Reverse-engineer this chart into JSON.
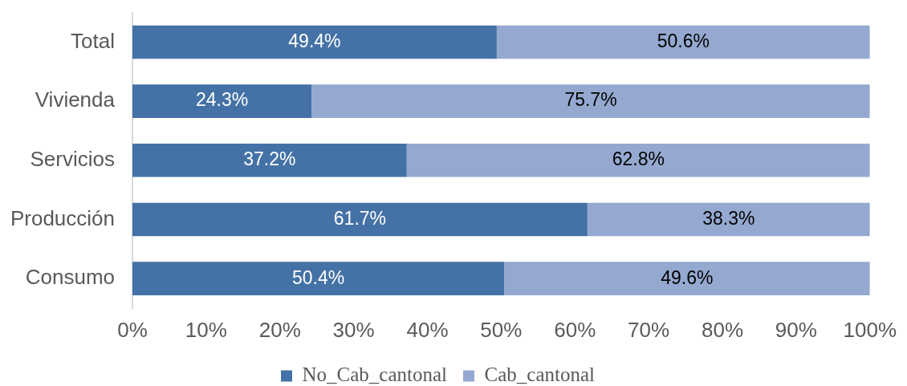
{
  "chart_data": {
    "type": "bar",
    "orientation": "horizontal",
    "stacked": true,
    "categories": [
      "Total",
      "Vivienda",
      "Servicios",
      "Producción",
      "Consumo"
    ],
    "series": [
      {
        "name": "No_Cab_cantonal",
        "color": "#4472a6",
        "values": [
          49.4,
          24.3,
          37.2,
          61.7,
          50.4
        ],
        "value_labels": [
          "49.4%",
          "24.3%",
          "37.2%",
          "61.7%",
          "50.4%"
        ]
      },
      {
        "name": "Cab_cantonal",
        "color": "#95a9d0",
        "values": [
          50.6,
          75.7,
          62.8,
          38.3,
          49.6
        ],
        "value_labels": [
          "50.6%",
          "75.7%",
          "62.8%",
          "38.3%",
          "49.6%"
        ]
      }
    ],
    "xlim": [
      0,
      100
    ],
    "xticks": [
      {
        "value": 0,
        "label": "0%"
      },
      {
        "value": 10,
        "label": "10%"
      },
      {
        "value": 20,
        "label": "20%"
      },
      {
        "value": 30,
        "label": "30%"
      },
      {
        "value": 40,
        "label": "40%"
      },
      {
        "value": 50,
        "label": "50%"
      },
      {
        "value": 60,
        "label": "60%"
      },
      {
        "value": 70,
        "label": "70%"
      },
      {
        "value": 80,
        "label": "80%"
      },
      {
        "value": 90,
        "label": "90%"
      },
      {
        "value": 100,
        "label": "100%"
      }
    ],
    "grid": false,
    "legend": "bottom"
  }
}
